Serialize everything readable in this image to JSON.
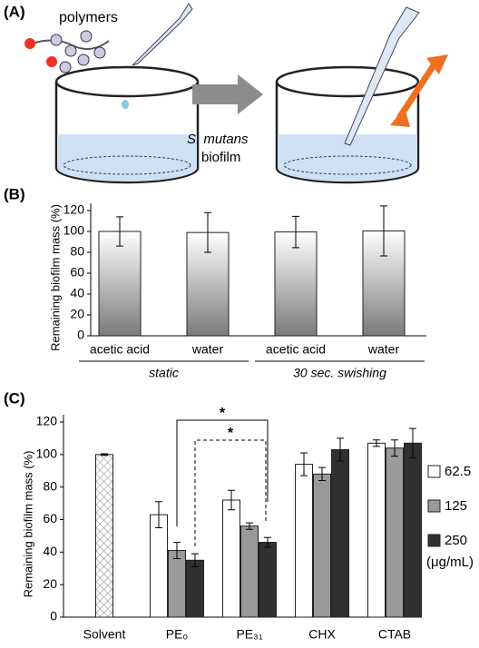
{
  "diagram": {
    "panel_label": "(A)",
    "polymer_label": "polymers",
    "species_label": "S. mutans",
    "biofilm_label": "biofilm"
  },
  "chart_data": [
    {
      "type": "bar",
      "panel_label": "(B)",
      "ylabel": "Remaining biofilm mass (%)",
      "categories": [
        "acetic acid",
        "water",
        "acetic acid",
        "water"
      ],
      "groups": [
        "static",
        "30 sec. swishing"
      ],
      "series": [
        {
          "values": [
            100,
            99,
            99.5,
            100.5
          ],
          "errors": [
            14,
            19,
            15,
            24
          ],
          "color": "#8c8c8c",
          "fill": "gradient"
        }
      ],
      "ylim": [
        0,
        120
      ],
      "yticks": [
        0,
        20,
        40,
        60,
        80,
        100,
        120
      ]
    },
    {
      "type": "bar",
      "panel_label": "(C)",
      "ylabel": "Remaining biofilm mass (%)",
      "categories": [
        "Solvent",
        "PE₀",
        "PE₃₁",
        "CHX",
        "CTAB"
      ],
      "series": [
        {
          "values": [
            100,
            null,
            null,
            null,
            null
          ],
          "errors": [
            0.5,
            null,
            null,
            null,
            null
          ],
          "color": "#ffffff",
          "fill": "crosshatch"
        },
        {
          "name": "62.5",
          "values": [
            null,
            63,
            72,
            94,
            107
          ],
          "errors": [
            null,
            8,
            6,
            7,
            2
          ],
          "color": "#ffffff"
        },
        {
          "name": "125",
          "values": [
            null,
            41,
            56,
            88,
            104
          ],
          "errors": [
            null,
            5,
            2,
            4,
            5
          ],
          "color": "#9a9a9a"
        },
        {
          "name": "250",
          "values": [
            null,
            35,
            46,
            103,
            107
          ],
          "errors": [
            null,
            4,
            3,
            7,
            9
          ],
          "color": "#303030"
        }
      ],
      "legend_unit": "(μg/mL)",
      "significance": [
        "*",
        "*"
      ],
      "ylim": [
        0,
        120
      ],
      "yticks": [
        0,
        20,
        40,
        60,
        80,
        100,
        120
      ]
    }
  ]
}
